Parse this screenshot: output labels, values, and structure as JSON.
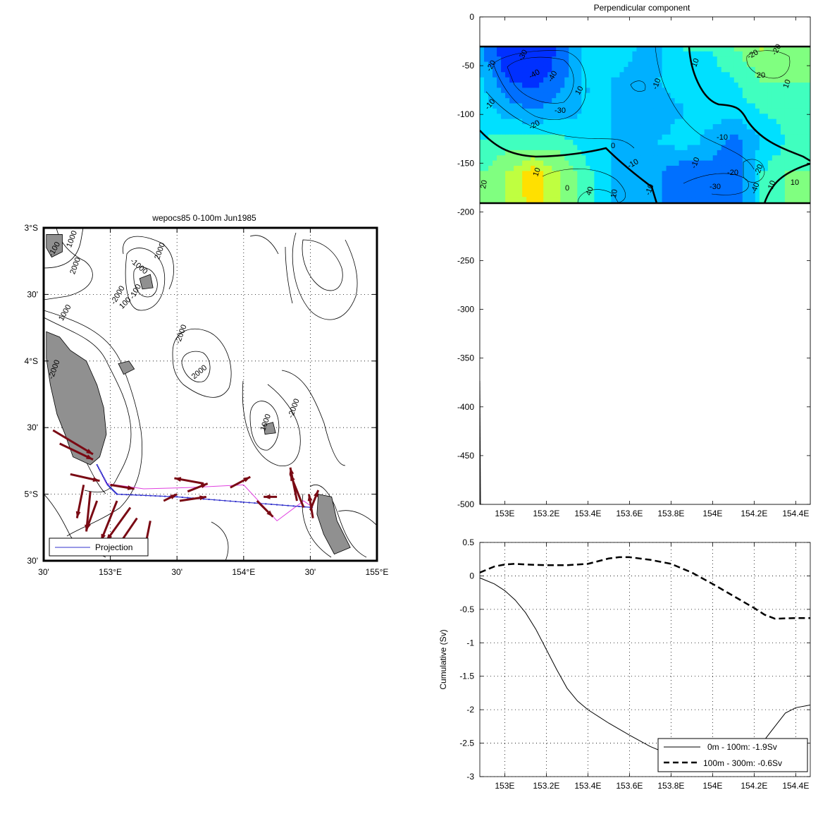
{
  "chart_data": [
    {
      "type": "map",
      "title": "wepocs85 0-100m Jun1985",
      "lon_ticks": [
        "30'",
        "153°E",
        "30'",
        "154°E",
        "30'",
        "155°E"
      ],
      "lon_tick_values": [
        152.5,
        153.0,
        153.5,
        154.0,
        154.5,
        155.0
      ],
      "lat_ticks": [
        "3°S",
        "30'",
        "4°S",
        "30'",
        "5°S",
        "30'"
      ],
      "lat_tick_values": [
        -3.0,
        -3.5,
        -4.0,
        -4.5,
        -5.0,
        -5.5
      ],
      "xlim": [
        152.5,
        155.0
      ],
      "ylim": [
        -5.5,
        -3.0
      ],
      "contour_labels": [
        "1000",
        "2000",
        "-100",
        "-2000",
        "-1000",
        "100",
        "2000",
        "-2000",
        "1000",
        "-100",
        "-2000",
        "2000",
        "1000",
        "-2000"
      ],
      "legend": [
        "Projection"
      ],
      "colors": {
        "land": "#909090",
        "vectors": "#7a0a14",
        "projection": "#3333cc",
        "ship_track": "#e040e0"
      },
      "vectors": [
        {
          "lon": 152.57,
          "lat": -4.52,
          "u": 0.3,
          "v": -0.18
        },
        {
          "lon": 152.62,
          "lat": -4.62,
          "u": 0.25,
          "v": -0.12
        },
        {
          "lon": 152.7,
          "lat": -4.85,
          "u": 0.22,
          "v": -0.05
        },
        {
          "lon": 152.8,
          "lat": -4.93,
          "u": -0.05,
          "v": -0.25
        },
        {
          "lon": 152.85,
          "lat": -4.98,
          "u": -0.03,
          "v": -0.3
        },
        {
          "lon": 152.9,
          "lat": -5.05,
          "u": -0.08,
          "v": -0.22
        },
        {
          "lon": 153.0,
          "lat": -4.93,
          "u": 0.18,
          "v": -0.03
        },
        {
          "lon": 153.05,
          "lat": -5.05,
          "u": -0.12,
          "v": -0.3
        },
        {
          "lon": 153.15,
          "lat": -5.1,
          "u": -0.18,
          "v": -0.25
        },
        {
          "lon": 153.2,
          "lat": -5.18,
          "u": -0.15,
          "v": -0.22
        },
        {
          "lon": 153.3,
          "lat": -5.2,
          "u": -0.05,
          "v": -0.25
        },
        {
          "lon": 153.4,
          "lat": -5.05,
          "u": 0.1,
          "v": 0.05
        },
        {
          "lon": 153.52,
          "lat": -5.05,
          "u": 0.2,
          "v": 0.03
        },
        {
          "lon": 153.58,
          "lat": -4.98,
          "u": 0.15,
          "v": 0.06
        },
        {
          "lon": 153.7,
          "lat": -4.92,
          "u": -0.22,
          "v": 0.04
        },
        {
          "lon": 153.9,
          "lat": -4.95,
          "u": 0.15,
          "v": 0.08
        },
        {
          "lon": 154.1,
          "lat": -5.05,
          "u": 0.12,
          "v": -0.12
        },
        {
          "lon": 154.25,
          "lat": -5.02,
          "u": -0.1,
          "v": 0.0
        },
        {
          "lon": 154.4,
          "lat": -5.05,
          "u": -0.05,
          "v": 0.25
        },
        {
          "lon": 154.45,
          "lat": -5.1,
          "u": -0.1,
          "v": 0.25
        },
        {
          "lon": 154.5,
          "lat": -5.12,
          "u": 0.06,
          "v": 0.15
        },
        {
          "lon": 154.52,
          "lat": -5.18,
          "u": -0.03,
          "v": 0.18
        }
      ],
      "projection_track": [
        [
          152.9,
          -4.78
        ],
        [
          152.98,
          -4.93
        ],
        [
          153.05,
          -5.0
        ],
        [
          153.5,
          -5.02
        ],
        [
          154.0,
          -5.06
        ],
        [
          154.52,
          -5.1
        ]
      ],
      "ship_track": [
        [
          152.9,
          -4.78
        ],
        [
          152.97,
          -4.92
        ],
        [
          153.25,
          -4.96
        ],
        [
          153.6,
          -4.95
        ],
        [
          154.0,
          -4.93
        ],
        [
          154.25,
          -5.2
        ],
        [
          154.45,
          -5.05
        ],
        [
          154.52,
          -5.1
        ]
      ],
      "land": [
        [
          [
            152.52,
            -3.78
          ],
          [
            152.62,
            -3.82
          ],
          [
            152.7,
            -3.92
          ],
          [
            152.82,
            -4.0
          ],
          [
            152.9,
            -4.18
          ],
          [
            152.95,
            -4.35
          ],
          [
            152.97,
            -4.55
          ],
          [
            152.92,
            -4.72
          ],
          [
            152.85,
            -4.78
          ],
          [
            152.72,
            -4.72
          ],
          [
            152.66,
            -4.55
          ],
          [
            152.6,
            -4.4
          ],
          [
            152.55,
            -4.18
          ],
          [
            152.52,
            -3.98
          ]
        ],
        [
          [
            154.56,
            -5.0
          ],
          [
            154.66,
            -5.02
          ],
          [
            154.7,
            -5.2
          ],
          [
            154.8,
            -5.4
          ],
          [
            154.68,
            -5.45
          ],
          [
            154.6,
            -5.3
          ],
          [
            154.55,
            -5.15
          ]
        ],
        [
          [
            152.52,
            -3.05
          ],
          [
            152.64,
            -3.05
          ],
          [
            152.64,
            -3.18
          ],
          [
            152.56,
            -3.22
          ],
          [
            152.52,
            -3.15
          ]
        ],
        [
          [
            153.22,
            -3.38
          ],
          [
            153.3,
            -3.35
          ],
          [
            153.32,
            -3.45
          ],
          [
            153.24,
            -3.46
          ]
        ],
        [
          [
            153.06,
            -4.02
          ],
          [
            153.14,
            -4.0
          ],
          [
            153.18,
            -4.06
          ],
          [
            153.1,
            -4.1
          ]
        ],
        [
          [
            154.15,
            -4.48
          ],
          [
            154.22,
            -4.46
          ],
          [
            154.24,
            -4.54
          ],
          [
            154.16,
            -4.55
          ]
        ]
      ]
    },
    {
      "type": "contour",
      "title": "Perpendicular component",
      "x_ticks": [
        "153E",
        "153.2E",
        "153.4E",
        "153.6E",
        "153.8E",
        "154E",
        "154.2E",
        "154.4E"
      ],
      "x_tick_values": [
        153.0,
        153.2,
        153.4,
        153.6,
        153.8,
        154.0,
        154.2,
        154.4
      ],
      "y_ticks": [
        "0",
        "-50",
        "-100",
        "-150",
        "-200",
        "-250",
        "-300",
        "-350",
        "-400",
        "-450",
        "-500"
      ],
      "y_tick_values": [
        0,
        -50,
        -100,
        -150,
        -200,
        -250,
        -300,
        -350,
        -400,
        -450,
        -500
      ],
      "xlim": [
        152.88,
        154.47
      ],
      "ylim": [
        -500,
        0
      ],
      "data_depth_range": [
        -30,
        -190
      ],
      "contour_labels": [
        "-20",
        "-30",
        "-40",
        "-40",
        "-30",
        "-20",
        "-10",
        "-10",
        "10",
        "20",
        "10",
        "-10",
        "-10",
        "-20",
        "-20",
        "-30",
        "-10",
        "10",
        "20",
        "40",
        "10",
        "-10",
        "-40",
        "-10",
        "10",
        "0",
        "-20",
        "-20",
        "10",
        "0"
      ],
      "grid": [
        [
          -20,
          -40,
          -40,
          -30,
          -10,
          -5,
          -10,
          -12,
          0,
          0,
          10,
          20,
          15
        ],
        [
          -10,
          -30,
          -35,
          -25,
          -10,
          -10,
          -12,
          -10,
          -5,
          -5,
          0,
          10,
          10
        ],
        [
          -5,
          -15,
          -20,
          -15,
          -10,
          -10,
          -15,
          -15,
          -10,
          -5,
          -5,
          0,
          5
        ],
        [
          0,
          5,
          5,
          5,
          -5,
          -10,
          -12,
          -10,
          -5,
          -15,
          -25,
          -10,
          0
        ],
        [
          10,
          20,
          35,
          20,
          5,
          -10,
          -20,
          -20,
          -30,
          -25,
          -30,
          0,
          10
        ]
      ],
      "levels": [
        -50,
        -40,
        -30,
        -20,
        -10,
        0,
        10,
        20,
        30,
        40,
        50
      ],
      "colors": [
        "#00008f",
        "#0030ff",
        "#0070ff",
        "#00b0ff",
        "#00e0ff",
        "#40ffbf",
        "#80ff80",
        "#bfff40",
        "#ffe000",
        "#ff9f00"
      ]
    },
    {
      "type": "line",
      "ylabel": "Cumulative (Sv)",
      "x_ticks": [
        "153E",
        "153.2E",
        "153.4E",
        "153.6E",
        "153.8E",
        "154E",
        "154.2E",
        "154.4E"
      ],
      "x_tick_values": [
        153.0,
        153.2,
        153.4,
        153.6,
        153.8,
        154.0,
        154.2,
        154.4
      ],
      "y_ticks": [
        "0.5",
        "0",
        "-0.5",
        "-1",
        "-1.5",
        "-2",
        "-2.5",
        "-3"
      ],
      "y_tick_values": [
        0.5,
        0,
        -0.5,
        -1,
        -1.5,
        -2,
        -2.5,
        -3
      ],
      "xlim": [
        152.88,
        154.47
      ],
      "ylim": [
        -3,
        0.5
      ],
      "legend": [
        "0m - 100m: -1.9Sv",
        "100m - 300m: -0.6Sv"
      ],
      "series": [
        {
          "name": "0m - 100m: -1.9Sv",
          "style": "solid",
          "x": [
            152.88,
            152.95,
            153.0,
            153.05,
            153.1,
            153.15,
            153.2,
            153.25,
            153.3,
            153.35,
            153.4,
            153.5,
            153.6,
            153.7,
            153.8,
            153.9,
            154.0,
            154.1,
            154.2,
            154.25,
            154.3,
            154.35,
            154.4,
            154.47
          ],
          "y": [
            -0.03,
            -0.12,
            -0.22,
            -0.36,
            -0.55,
            -0.8,
            -1.1,
            -1.4,
            -1.68,
            -1.87,
            -2.0,
            -2.2,
            -2.38,
            -2.55,
            -2.68,
            -2.75,
            -2.78,
            -2.7,
            -2.55,
            -2.45,
            -2.25,
            -2.05,
            -1.97,
            -1.93
          ]
        },
        {
          "name": "100m - 300m: -0.6Sv",
          "style": "dashed",
          "x": [
            152.88,
            152.95,
            153.0,
            153.05,
            153.1,
            153.2,
            153.3,
            153.4,
            153.5,
            153.55,
            153.6,
            153.7,
            153.8,
            153.9,
            154.0,
            154.1,
            154.2,
            154.25,
            154.3,
            154.4,
            154.47
          ],
          "y": [
            0.05,
            0.14,
            0.17,
            0.18,
            0.17,
            0.16,
            0.16,
            0.18,
            0.26,
            0.28,
            0.28,
            0.24,
            0.18,
            0.05,
            -0.12,
            -0.3,
            -0.48,
            -0.58,
            -0.64,
            -0.63,
            -0.63
          ]
        }
      ]
    }
  ]
}
